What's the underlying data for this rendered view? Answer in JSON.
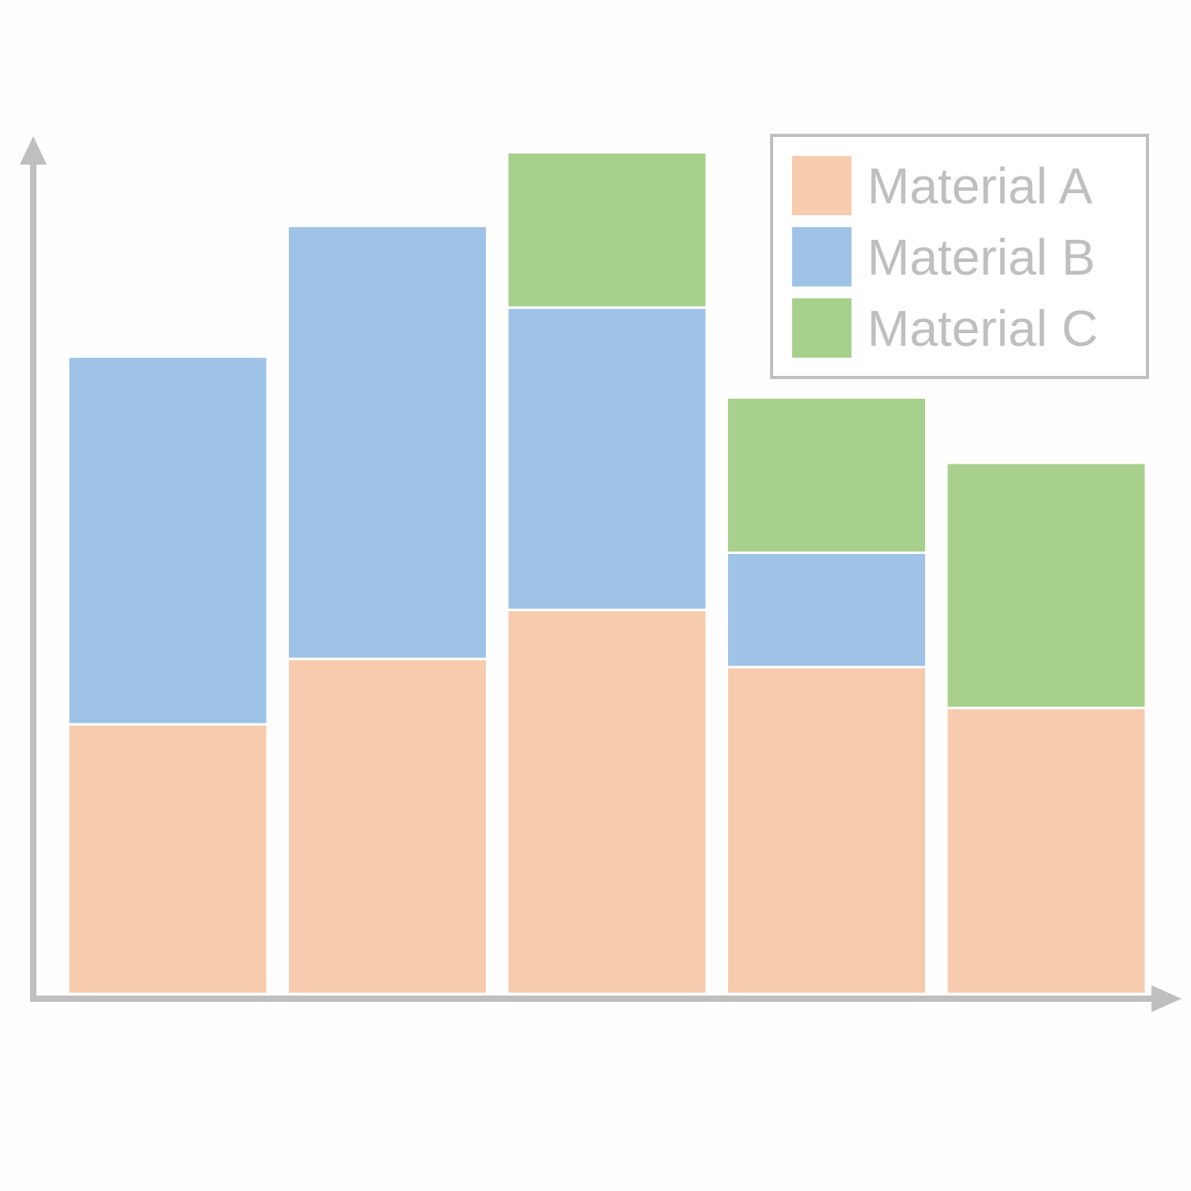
{
  "chart_data": {
    "type": "bar",
    "stacked": true,
    "categories": [
      "",
      "",
      "",
      "",
      ""
    ],
    "series": [
      {
        "name": "Material A",
        "color": "#f7cbae",
        "values": [
          33,
          41,
          47,
          40,
          35
        ]
      },
      {
        "name": "Material B",
        "color": "#9fc3e6",
        "values": [
          45,
          53,
          37,
          14,
          0
        ]
      },
      {
        "name": "Material C",
        "color": "#a8d08d",
        "values": [
          0,
          0,
          19,
          19,
          30
        ]
      }
    ],
    "title": "",
    "xlabel": "",
    "ylabel": "",
    "ylim": [
      0,
      102
    ],
    "grid": false,
    "legend_position": "top-right",
    "axis_color": "#bfbfbf",
    "legend_text_color": "#bfbfbf"
  }
}
